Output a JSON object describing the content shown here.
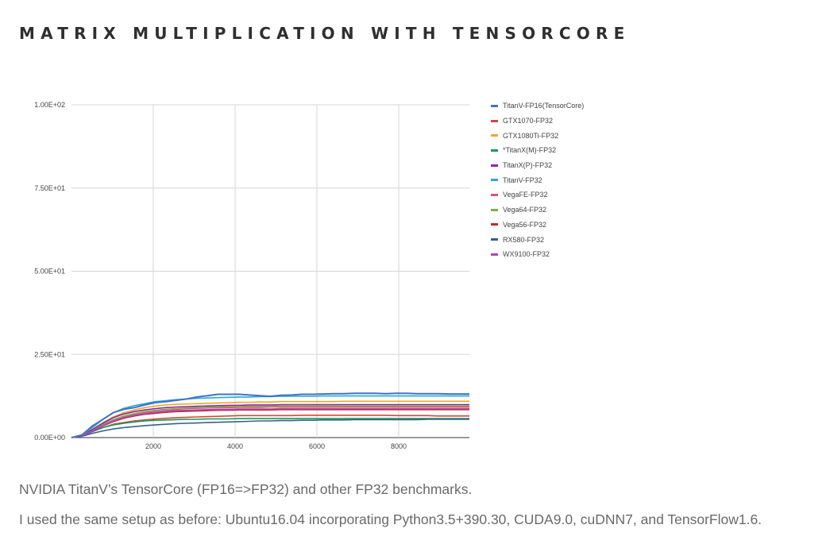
{
  "page": {
    "title": "MATRIX MULTIPLICATION WITH TENSORCORE",
    "caption_1": "NVIDIA TitanV’s TensorCore (FP16=>FP32) and other FP32 benchmarks.",
    "caption_2": "I used the same setup as before: Ubuntu16.04 incorporating Python3.5+390.30, CUDA9.0, cuDNN7, and TensorFlow1.6."
  },
  "chart_data": {
    "type": "line",
    "title": "",
    "xlabel": "",
    "ylabel": "",
    "xlim": [
      0,
      9728
    ],
    "ylim": [
      0,
      100
    ],
    "grid": true,
    "legend_position": "right",
    "x_ticks": [
      2000,
      4000,
      6000,
      8000
    ],
    "x_tick_labels": [
      "2000",
      "4000",
      "6000",
      "8000"
    ],
    "y_ticks": [
      0,
      25,
      50,
      75,
      100
    ],
    "y_tick_labels": [
      "0.00E+00",
      "2.50E+01",
      "5.00E+01",
      "7.50E+01",
      "1.00E+02"
    ],
    "x": [
      0,
      256,
      512,
      768,
      1024,
      1280,
      1536,
      1792,
      2048,
      2304,
      2560,
      2816,
      3072,
      3328,
      3584,
      3840,
      4096,
      4352,
      4608,
      4864,
      5120,
      5376,
      5632,
      5888,
      6144,
      6400,
      6656,
      6912,
      7168,
      7424,
      7680,
      7936,
      8192,
      8448,
      8704,
      8960,
      9216,
      9472,
      9728
    ],
    "series": [
      {
        "name": "TitanV-FP16(TensorCore)",
        "color": "#4472c4",
        "values": [
          0,
          0.8,
          3.5,
          5.5,
          7.5,
          8.5,
          9,
          9.8,
          10.5,
          10.8,
          11.2,
          11.6,
          12.2,
          12.6,
          13,
          13,
          13,
          12.8,
          12.6,
          12.4,
          12.7,
          12.8,
          13,
          13,
          13.1,
          13.2,
          13.2,
          13.3,
          13.3,
          13.3,
          13.2,
          13.3,
          13.3,
          13.2,
          13.2,
          13.2,
          13.1,
          13.1,
          13.1
        ]
      },
      {
        "name": "GTX1070-FP32",
        "color": "#db4437",
        "values": [
          0,
          0.5,
          2,
          3,
          4,
          4.5,
          5,
          5.3,
          5.6,
          5.8,
          6,
          6.1,
          6.2,
          6.3,
          6.4,
          6.5,
          6.6,
          6.6,
          6.6,
          6.6,
          6.6,
          6.6,
          6.7,
          6.7,
          6.7,
          6.7,
          6.7,
          6.7,
          6.7,
          6.7,
          6.7,
          6.6,
          6.6,
          6.6,
          6.6,
          6.5,
          6.5,
          6.5,
          6.5
        ]
      },
      {
        "name": "GTX1080Ti-FP32",
        "color": "#f4a623",
        "values": [
          0,
          0.6,
          2.5,
          4.5,
          6.2,
          7.5,
          8.3,
          9,
          9.5,
          9.8,
          10,
          10.1,
          10.2,
          10.3,
          10.4,
          10.5,
          10.6,
          10.6,
          10.7,
          10.7,
          10.8,
          10.8,
          10.8,
          10.8,
          10.8,
          10.8,
          10.9,
          10.9,
          10.9,
          10.9,
          10.9,
          10.9,
          10.9,
          10.9,
          10.9,
          10.9,
          10.9,
          10.9,
          10.9
        ]
      },
      {
        "name": "*TitanX(M)-FP32",
        "color": "#0f9d58",
        "values": [
          0,
          0.5,
          1.8,
          3,
          3.8,
          4.3,
          4.7,
          5,
          5.2,
          5.3,
          5.4,
          5.5,
          5.5,
          5.6,
          5.6,
          5.6,
          5.7,
          5.7,
          5.7,
          5.7,
          5.7,
          5.7,
          5.7,
          5.7,
          5.7,
          5.7,
          5.7,
          5.7,
          5.7,
          5.7,
          5.7,
          5.7,
          5.7,
          5.7,
          5.7,
          5.7,
          5.7,
          5.7,
          5.7
        ]
      },
      {
        "name": "TitanX(P)-FP32",
        "color": "#8e24aa",
        "values": [
          0,
          0.6,
          2.4,
          4.3,
          6,
          7.1,
          7.8,
          8.3,
          8.7,
          9,
          9.2,
          9.3,
          9.4,
          9.5,
          9.6,
          9.7,
          9.7,
          9.8,
          9.8,
          9.8,
          9.9,
          9.9,
          9.9,
          9.9,
          9.9,
          9.9,
          9.9,
          9.9,
          9.9,
          9.9,
          9.9,
          9.9,
          9.9,
          9.9,
          9.9,
          9.9,
          9.9,
          9.9,
          9.9
        ]
      },
      {
        "name": "TitanV-FP32",
        "color": "#26a9d6",
        "values": [
          0,
          0.7,
          3,
          5.5,
          7.5,
          8.8,
          9.6,
          10.2,
          10.8,
          11.1,
          11.4,
          11.6,
          11.8,
          11.9,
          12,
          12.1,
          12.2,
          12.2,
          12.3,
          12.3,
          12.4,
          12.4,
          12.4,
          12.4,
          12.5,
          12.5,
          12.5,
          12.5,
          12.5,
          12.5,
          12.5,
          12.5,
          12.5,
          12.5,
          12.5,
          12.5,
          12.5,
          12.5,
          12.5
        ]
      },
      {
        "name": "VegaFE-FP32",
        "color": "#e84c7a",
        "values": [
          0,
          0.5,
          2,
          3.8,
          5.2,
          6.3,
          7,
          7.6,
          8,
          8.3,
          8.5,
          8.7,
          8.8,
          8.9,
          9,
          9,
          9.1,
          9.1,
          9.1,
          9.2,
          9.2,
          9.2,
          9.2,
          9.2,
          9.2,
          9.2,
          9.2,
          9.2,
          9.2,
          9.2,
          9.2,
          9.2,
          9.2,
          9.2,
          9.2,
          9.2,
          9.2,
          9.2,
          9.2
        ]
      },
      {
        "name": "Vega64-FP32",
        "color": "#7cb342",
        "values": [
          0,
          0.5,
          2,
          3.9,
          5.4,
          6.5,
          7.2,
          7.8,
          8.2,
          8.5,
          8.7,
          8.9,
          9,
          9.1,
          9.2,
          9.3,
          9.3,
          9.4,
          9.4,
          9.4,
          9.5,
          9.5,
          9.5,
          9.5,
          9.5,
          9.5,
          9.5,
          9.5,
          9.5,
          9.5,
          9.5,
          9.5,
          9.5,
          9.5,
          9.5,
          9.5,
          9.5,
          9.5,
          9.5
        ]
      },
      {
        "name": "Vega56-FP32",
        "color": "#c62828",
        "values": [
          0,
          0.5,
          1.9,
          3.5,
          4.8,
          5.8,
          6.5,
          7,
          7.3,
          7.6,
          7.8,
          7.9,
          8,
          8.1,
          8.2,
          8.2,
          8.3,
          8.3,
          8.3,
          8.3,
          8.4,
          8.4,
          8.4,
          8.4,
          8.4,
          8.4,
          8.4,
          8.4,
          8.4,
          8.4,
          8.4,
          8.4,
          8.4,
          8.4,
          8.4,
          8.4,
          8.4,
          8.4,
          8.4
        ]
      },
      {
        "name": "RX580-FP32",
        "color": "#3b5f8a",
        "values": [
          0,
          0.4,
          1.3,
          2,
          2.6,
          3,
          3.3,
          3.6,
          3.8,
          4,
          4.2,
          4.3,
          4.4,
          4.5,
          4.6,
          4.7,
          4.8,
          4.9,
          5,
          5,
          5.1,
          5.1,
          5.2,
          5.2,
          5.3,
          5.3,
          5.3,
          5.4,
          5.4,
          5.4,
          5.4,
          5.4,
          5.4,
          5.4,
          5.5,
          5.5,
          5.5,
          5.5,
          5.5
        ]
      },
      {
        "name": "WX9100-FP32",
        "color": "#ab47bc",
        "values": [
          0,
          0.5,
          2,
          3.6,
          5,
          6,
          6.7,
          7.2,
          7.6,
          7.9,
          8.1,
          8.2,
          8.3,
          8.4,
          8.5,
          8.5,
          8.6,
          8.6,
          8.6,
          8.6,
          8.7,
          8.7,
          8.7,
          8.7,
          8.7,
          8.7,
          8.7,
          8.7,
          8.7,
          8.7,
          8.7,
          8.7,
          8.7,
          8.7,
          8.7,
          8.7,
          8.7,
          8.7,
          8.7
        ]
      }
    ]
  }
}
